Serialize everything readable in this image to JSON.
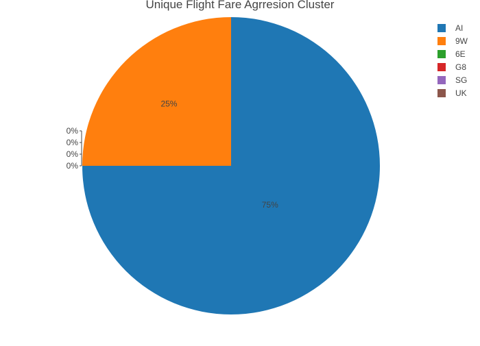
{
  "chart_data": {
    "type": "pie",
    "title": "Unique Flight Fare Agrresion Cluster",
    "slices": [
      {
        "label": "AI",
        "value": 75,
        "text": "75%",
        "color": "#1f77b4"
      },
      {
        "label": "9W",
        "value": 25,
        "text": "25%",
        "color": "#ff7f0e"
      },
      {
        "label": "6E",
        "value": 0,
        "text": "0%",
        "color": "#2ca02c"
      },
      {
        "label": "G8",
        "value": 0,
        "text": "0%",
        "color": "#d62728"
      },
      {
        "label": "SG",
        "value": 0,
        "text": "0%",
        "color": "#9467bd"
      },
      {
        "label": "UK",
        "value": 0,
        "text": "0%",
        "color": "#8c564b"
      }
    ],
    "legend_position": "top-right",
    "label_position": "inside, zero-value slices labelled outside on the left"
  }
}
